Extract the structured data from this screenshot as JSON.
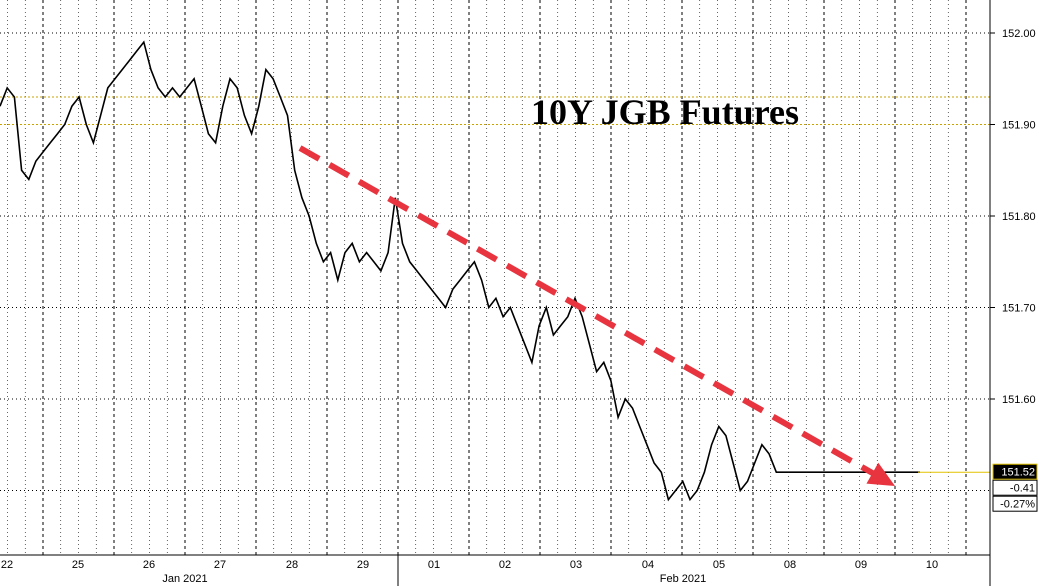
{
  "chart_data": {
    "type": "line",
    "title": "10Y JGB Futures",
    "xlabel": "",
    "ylabel": "",
    "ylim": [
      151.45,
      152.02
    ],
    "y_ticks": [
      "152.00",
      "151.90",
      "151.80",
      "151.70",
      "151.60"
    ],
    "day_ticks": [
      "22",
      "25",
      "26",
      "27",
      "28",
      "29",
      "01",
      "02",
      "03",
      "04",
      "05",
      "08",
      "09",
      "10"
    ],
    "month_labels": [
      "Jan 2021",
      "Feb 2021"
    ],
    "reference_lines": [
      151.93,
      151.9
    ],
    "trend_arrow": {
      "from": [
        4.0,
        151.885
      ],
      "to": [
        12.3,
        151.5
      ],
      "color": "#e8343f"
    },
    "last_value": {
      "price": "151.52",
      "change": "-0.41",
      "pct": "-0.27%"
    },
    "series": [
      {
        "x": [
          0.0,
          0.1,
          0.2,
          0.3,
          0.4,
          0.5,
          0.6,
          0.7,
          0.8,
          0.9,
          1.0,
          1.1,
          1.2,
          1.3,
          1.4,
          1.5,
          1.6,
          1.7,
          1.8,
          1.9,
          2.0,
          2.1,
          2.2,
          2.3,
          2.4,
          2.5,
          2.6,
          2.7,
          2.8,
          2.9,
          3.0,
          3.1,
          3.2,
          3.3,
          3.4,
          3.5,
          3.6,
          3.7,
          3.8,
          3.9,
          4.0,
          4.1,
          4.2,
          4.3,
          4.4,
          4.5,
          4.6,
          4.7,
          4.8,
          4.9,
          5.0,
          5.1,
          5.2,
          5.3,
          5.4,
          5.5,
          5.6,
          5.7,
          5.8,
          5.9,
          6.0,
          6.1,
          6.2,
          6.3,
          6.4,
          6.5,
          6.6,
          6.7,
          6.8,
          6.9,
          7.0,
          7.1,
          7.2,
          7.3,
          7.4,
          7.5,
          7.6,
          7.7,
          7.8,
          7.9,
          8.0,
          8.1,
          8.2,
          8.3,
          8.4,
          8.5,
          8.6,
          8.7,
          8.8,
          8.9,
          9.0,
          9.1,
          9.2,
          9.3,
          9.4,
          9.5,
          9.6,
          9.7,
          9.8,
          9.9,
          10.0,
          10.1,
          10.2,
          10.3,
          10.4,
          10.5,
          10.6,
          10.7,
          10.8,
          10.9,
          11.0,
          11.1,
          11.2,
          11.3,
          11.4,
          11.5,
          11.6,
          11.7,
          11.8,
          11.9,
          12.0,
          12.1,
          12.2,
          12.3,
          12.4,
          12.5,
          12.6,
          12.7,
          12.8
        ],
        "values": [
          151.92,
          151.94,
          151.93,
          151.85,
          151.84,
          151.86,
          151.87,
          151.88,
          151.89,
          151.9,
          151.92,
          151.93,
          151.9,
          151.88,
          151.91,
          151.94,
          151.95,
          151.96,
          151.97,
          151.98,
          151.99,
          151.96,
          151.94,
          151.93,
          151.94,
          151.93,
          151.94,
          151.95,
          151.92,
          151.89,
          151.88,
          151.92,
          151.95,
          151.94,
          151.91,
          151.89,
          151.92,
          151.96,
          151.95,
          151.93,
          151.91,
          151.85,
          151.82,
          151.8,
          151.77,
          151.75,
          151.76,
          151.73,
          151.76,
          151.77,
          151.75,
          151.76,
          151.75,
          151.74,
          151.76,
          151.82,
          151.77,
          151.75,
          151.74,
          151.73,
          151.72,
          151.71,
          151.7,
          151.72,
          151.73,
          151.74,
          151.75,
          151.73,
          151.7,
          151.71,
          151.69,
          151.7,
          151.68,
          151.66,
          151.64,
          151.68,
          151.7,
          151.67,
          151.68,
          151.69,
          151.71,
          151.69,
          151.66,
          151.63,
          151.64,
          151.62,
          151.58,
          151.6,
          151.59,
          151.57,
          151.55,
          151.53,
          151.52,
          151.49,
          151.5,
          151.51,
          151.49,
          151.5,
          151.52,
          151.55,
          151.57,
          151.56,
          151.53,
          151.5,
          151.51,
          151.53,
          151.55,
          151.54,
          151.52,
          151.52,
          151.52,
          151.52,
          151.52,
          151.52,
          151.52,
          151.52,
          151.52,
          151.52,
          151.52,
          151.52,
          151.52,
          151.52,
          151.52,
          151.52,
          151.52,
          151.52,
          151.52,
          151.52,
          151.52
        ]
      }
    ]
  }
}
